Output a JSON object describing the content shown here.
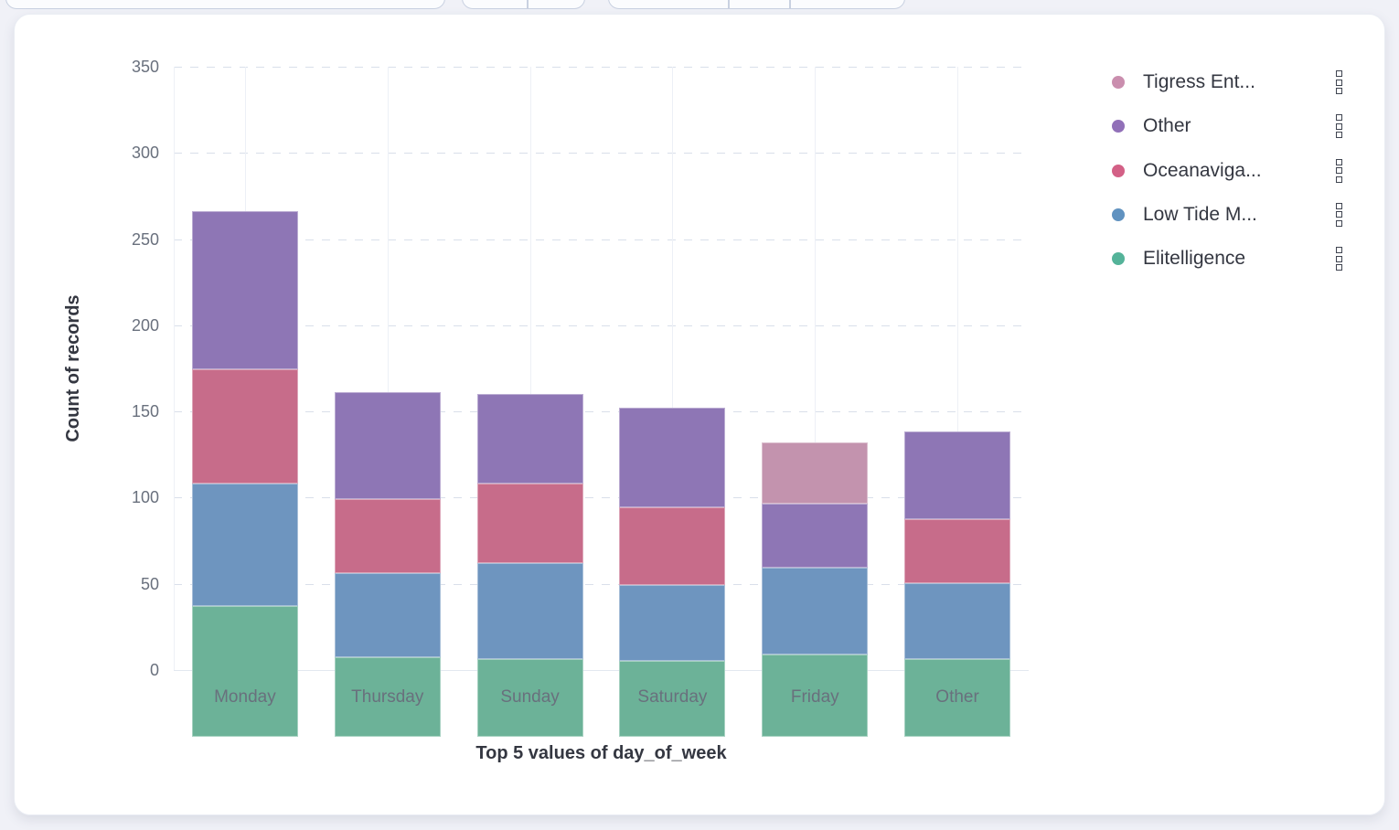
{
  "chart": {
    "y_axis_title": "Count of records",
    "x_axis_title": "Top 5 values of day_of_week"
  },
  "chart_data": {
    "type": "bar",
    "stacked": true,
    "title": "",
    "xlabel": "Top 5 values of day_of_week",
    "ylabel": "Count of records",
    "categories": [
      "Monday",
      "Thursday",
      "Sunday",
      "Saturday",
      "Friday",
      "Other"
    ],
    "series": [
      {
        "name": "Elitelligence",
        "color": "#6CB298",
        "values": [
          76,
          46,
          45,
          44,
          48,
          45
        ]
      },
      {
        "name": "Low Tide M...",
        "color": "#6E95BF",
        "values": [
          71,
          49,
          56,
          44,
          50,
          44
        ]
      },
      {
        "name": "Oceanaviga...",
        "color": "#C76C8A",
        "values": [
          66,
          43,
          46,
          45,
          0,
          37
        ]
      },
      {
        "name": "Other",
        "color": "#8E76B5",
        "values": [
          92,
          62,
          52,
          58,
          37,
          51
        ]
      },
      {
        "name": "Tigress Ent...",
        "color": "#C393AE",
        "values": [
          0,
          0,
          0,
          0,
          36,
          0
        ]
      }
    ],
    "totals": [
      305,
      200,
      199,
      191,
      171,
      177
    ],
    "ylim": [
      0,
      350
    ],
    "yticks": [
      0,
      50,
      100,
      150,
      200,
      250,
      300,
      350
    ],
    "grid": true,
    "legend_position": "right"
  },
  "legend": {
    "items": [
      {
        "label": "Tigress Ent...",
        "color": "#CA8EAE"
      },
      {
        "label": "Other",
        "color": "#9170B8"
      },
      {
        "label": "Oceanaviga...",
        "color": "#D36086"
      },
      {
        "label": "Low Tide M...",
        "color": "#6092C0"
      },
      {
        "label": "Elitelligence",
        "color": "#54B399"
      }
    ]
  },
  "colors": {
    "page_bg": "#F0F1F7",
    "card_bg": "#FFFFFF",
    "text_dark": "#343741",
    "text_muted": "#69707D",
    "grid_h": "#D9DFEA",
    "grid_v": "#EDF0F6",
    "axis_line": "#E3E8F0"
  }
}
